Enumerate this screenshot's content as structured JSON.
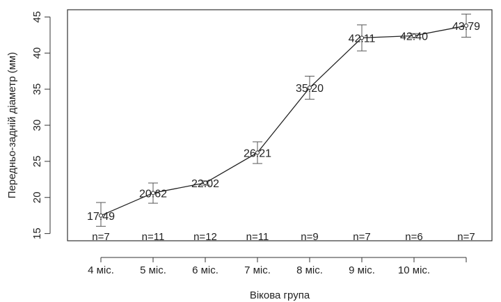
{
  "chart_data": {
    "type": "line",
    "title": "",
    "xlabel": "Вікова група",
    "ylabel": "Передньо-задній діаметр (мм)",
    "ylim": [
      14,
      46
    ],
    "yticks": [
      15,
      20,
      25,
      30,
      35,
      40,
      45
    ],
    "grid": false,
    "categories": [
      "4 міс.",
      "5 міс.",
      "6 міс.",
      "7 міс.",
      "8 міс.",
      "9 міс.",
      "10 міс.",
      ""
    ],
    "values": [
      17.49,
      20.62,
      22.02,
      26.21,
      35.2,
      42.11,
      42.4,
      43.79
    ],
    "value_labels": [
      "17.49",
      "20.62",
      "22.02",
      "26.21",
      "35.20",
      "42.11",
      "42.40",
      "43.79"
    ],
    "error_low": [
      16.0,
      19.2,
      21.7,
      24.7,
      33.6,
      40.3,
      42.1,
      42.2
    ],
    "error_high": [
      19.3,
      22.0,
      22.3,
      27.7,
      36.8,
      43.9,
      42.7,
      45.4
    ],
    "n_labels": [
      "n=7",
      "n=11",
      "n=12",
      "n=11",
      "n=9",
      "n=7",
      "n=6",
      "n=7"
    ]
  }
}
